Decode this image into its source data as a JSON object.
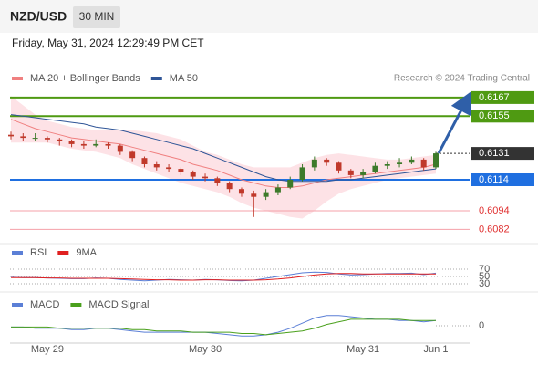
{
  "header": {
    "symbol": "NZD/USD",
    "timeframe": "30 MIN",
    "datetime": "Friday, May 31, 2024 12:29:49 PM CET"
  },
  "chart_data": [
    {
      "type": "candlestick",
      "credit": "Research © 2024 Trading Central",
      "categories": [
        null,
        null,
        null,
        "May 29",
        null,
        null,
        null,
        null,
        null,
        null,
        null,
        null,
        null,
        null,
        null,
        null,
        "May 30",
        null,
        null,
        null,
        null,
        null,
        null,
        null,
        null,
        null,
        null,
        null,
        null,
        "May 31",
        null,
        null,
        null,
        null,
        null,
        "Jun 1"
      ],
      "up_color": "#3d7a2a",
      "down_color": "#c0392b",
      "candles": [
        [
          0.6143,
          0.6145,
          0.614,
          0.6142
        ],
        [
          0.6142,
          0.6144,
          0.6139,
          0.6141
        ],
        [
          0.6141,
          0.6144,
          0.6139,
          0.6141
        ],
        [
          0.6141,
          0.6142,
          0.6138,
          0.614
        ],
        [
          0.614,
          0.6141,
          0.6136,
          0.6139
        ],
        [
          0.6139,
          0.614,
          0.6135,
          0.6137
        ],
        [
          0.6137,
          0.6139,
          0.6134,
          0.6136
        ],
        [
          0.6136,
          0.614,
          0.6135,
          0.6137
        ],
        [
          0.6137,
          0.6138,
          0.6134,
          0.6136
        ],
        [
          0.6136,
          0.6137,
          0.613,
          0.6132
        ],
        [
          0.6132,
          0.6133,
          0.6126,
          0.6128
        ],
        [
          0.6128,
          0.6129,
          0.6122,
          0.6124
        ],
        [
          0.6124,
          0.6126,
          0.612,
          0.6122
        ],
        [
          0.6122,
          0.6124,
          0.6119,
          0.6121
        ],
        [
          0.6121,
          0.6122,
          0.6117,
          0.6119
        ],
        [
          0.6119,
          0.612,
          0.6114,
          0.6116
        ],
        [
          0.6116,
          0.6118,
          0.6113,
          0.6115
        ],
        [
          0.6115,
          0.6116,
          0.611,
          0.6112
        ],
        [
          0.6112,
          0.6113,
          0.6106,
          0.6108
        ],
        [
          0.6108,
          0.6109,
          0.6103,
          0.6105
        ],
        [
          0.6105,
          0.6107,
          0.609,
          0.6103
        ],
        [
          0.6103,
          0.6108,
          0.6101,
          0.6106
        ],
        [
          0.6106,
          0.6111,
          0.6104,
          0.6109
        ],
        [
          0.6109,
          0.6116,
          0.6108,
          0.6114
        ],
        [
          0.6114,
          0.6124,
          0.6113,
          0.6122
        ],
        [
          0.6122,
          0.6129,
          0.612,
          0.6127
        ],
        [
          0.6127,
          0.6128,
          0.6123,
          0.6125
        ],
        [
          0.6125,
          0.6126,
          0.6118,
          0.612
        ],
        [
          0.612,
          0.6121,
          0.6115,
          0.6117
        ],
        [
          0.6117,
          0.6121,
          0.6115,
          0.6119
        ],
        [
          0.6119,
          0.6125,
          0.6118,
          0.6123
        ],
        [
          0.6123,
          0.6126,
          0.6121,
          0.6124
        ],
        [
          0.6124,
          0.6128,
          0.6122,
          0.6125
        ],
        [
          0.6125,
          0.6129,
          0.6124,
          0.6127
        ],
        [
          0.6127,
          0.6128,
          0.612,
          0.6122
        ],
        [
          0.6122,
          0.6132,
          0.6121,
          0.6131
        ]
      ],
      "bollinger": {
        "color": "#fcd6db",
        "upper": [
          0.6168,
          0.6162,
          0.6156,
          0.6152,
          0.615,
          0.6148,
          0.6147,
          0.6146,
          0.6146,
          0.6146,
          0.6146,
          0.6145,
          0.6144,
          0.6142,
          0.614,
          0.6136,
          0.6132,
          0.613,
          0.6127,
          0.6124,
          0.6122,
          0.6122,
          0.6122,
          0.6122,
          0.6125,
          0.6128,
          0.613,
          0.6131,
          0.613,
          0.6129,
          0.6128,
          0.6127,
          0.6127,
          0.6128,
          0.6129,
          0.613
        ],
        "lower": [
          0.6138,
          0.6138,
          0.6138,
          0.6138,
          0.6136,
          0.6134,
          0.6133,
          0.6132,
          0.613,
          0.6128,
          0.6124,
          0.6121,
          0.6118,
          0.6115,
          0.6112,
          0.611,
          0.6108,
          0.6106,
          0.6103,
          0.6099,
          0.6096,
          0.6094,
          0.6092,
          0.609,
          0.6089,
          0.6094,
          0.61,
          0.6105,
          0.6108,
          0.611,
          0.6112,
          0.6114,
          0.6115,
          0.6116,
          0.6117,
          0.6118
        ]
      },
      "series": [
        {
          "name": "MA 20 + Bollinger Bands",
          "color": "#f08080",
          "values": [
            0.6153,
            0.615,
            0.6147,
            0.6145,
            0.6143,
            0.6141,
            0.614,
            0.6139,
            0.6138,
            0.6137,
            0.6135,
            0.6133,
            0.6131,
            0.6129,
            0.6127,
            0.6124,
            0.6122,
            0.612,
            0.6117,
            0.6114,
            0.6112,
            0.611,
            0.6109,
            0.6109,
            0.611,
            0.6112,
            0.6114,
            0.6115,
            0.6116,
            0.6117,
            0.6118,
            0.6119,
            0.612,
            0.6121,
            0.6122,
            0.6124
          ]
        },
        {
          "name": "MA 50",
          "color": "#2f5597",
          "values": [
            0.6156,
            0.6155,
            0.6154,
            0.6153,
            0.6152,
            0.6151,
            0.615,
            0.6148,
            0.6147,
            0.6146,
            0.6144,
            0.6142,
            0.614,
            0.6138,
            0.6136,
            0.6134,
            0.6131,
            0.6128,
            0.6125,
            0.6122,
            0.6119,
            0.6116,
            0.6114,
            0.6113,
            0.6113,
            0.6113,
            0.6113,
            0.6114,
            0.6114,
            0.6115,
            0.6116,
            0.6117,
            0.6118,
            0.6119,
            0.612,
            0.6121
          ]
        }
      ],
      "levels": [
        {
          "value": 0.6167,
          "color": "#4f9a12",
          "box": true,
          "full": true
        },
        {
          "value": 0.6155,
          "color": "#4f9a12",
          "box": true,
          "full": true
        },
        {
          "value": 0.6131,
          "color": "#333333",
          "box": true,
          "full": false
        },
        {
          "value": 0.6114,
          "color": "#1f6fe0",
          "box": true,
          "full": true
        },
        {
          "value": 0.6094,
          "color": "#f4a0a8",
          "text_color": "#e03030",
          "box": false,
          "full": true
        },
        {
          "value": 0.6082,
          "color": "#f4a0a8",
          "text_color": "#e03030",
          "box": false,
          "full": true
        }
      ],
      "ylim": [
        0.6074,
        0.6174
      ]
    },
    {
      "type": "line",
      "series": [
        {
          "name": "RSI",
          "color": "#5b7fd6",
          "values": [
            48,
            47,
            47,
            46,
            45,
            44,
            44,
            46,
            45,
            42,
            40,
            38,
            40,
            42,
            41,
            40,
            42,
            41,
            39,
            38,
            40,
            45,
            50,
            55,
            60,
            62,
            61,
            57,
            54,
            55,
            57,
            58,
            58,
            59,
            55,
            59
          ]
        },
        {
          "name": "9MA",
          "color": "#e02020",
          "values": [
            47,
            47,
            47,
            46,
            46,
            45,
            45,
            45,
            45,
            44,
            43,
            42,
            41,
            41,
            40,
            40,
            41,
            41,
            40,
            40,
            40,
            41,
            43,
            46,
            50,
            54,
            57,
            58,
            58,
            57,
            57,
            57,
            57,
            57,
            57,
            57
          ]
        }
      ],
      "ylim": [
        15,
        85
      ],
      "yticks": [
        30,
        50,
        70
      ]
    },
    {
      "type": "line",
      "series": [
        {
          "name": "MACD",
          "color": "#5b7fd6",
          "values": [
            -0.0001,
            -0.0001,
            -0.0002,
            -0.0002,
            -0.0002,
            -0.0003,
            -0.0003,
            -0.0002,
            -0.0002,
            -0.0003,
            -0.0004,
            -0.0005,
            -0.0005,
            -0.0005,
            -0.0005,
            -0.0005,
            -0.0005,
            -0.0006,
            -0.0007,
            -0.0008,
            -0.0008,
            -0.0007,
            -0.0005,
            -0.0002,
            0.0002,
            0.0006,
            0.0008,
            0.0008,
            0.0007,
            0.0006,
            0.0005,
            0.0005,
            0.0004,
            0.0004,
            0.0003,
            0.0004
          ]
        },
        {
          "name": "MACD Signal",
          "color": "#4aa01c",
          "values": [
            -0.0001,
            -0.0001,
            -0.0001,
            -0.0001,
            -0.0002,
            -0.0002,
            -0.0002,
            -0.0002,
            -0.0002,
            -0.0002,
            -0.0003,
            -0.0003,
            -0.0004,
            -0.0004,
            -0.0004,
            -0.0005,
            -0.0005,
            -0.0005,
            -0.0005,
            -0.0006,
            -0.0006,
            -0.0007,
            -0.0006,
            -0.0005,
            -0.0004,
            -0.0002,
            0.0001,
            0.0003,
            0.0005,
            0.0005,
            0.0005,
            0.0005,
            0.0005,
            0.0004,
            0.0004,
            0.0004
          ]
        }
      ],
      "ylim": [
        -0.0012,
        0.0012
      ],
      "yticks": [
        0
      ]
    }
  ]
}
